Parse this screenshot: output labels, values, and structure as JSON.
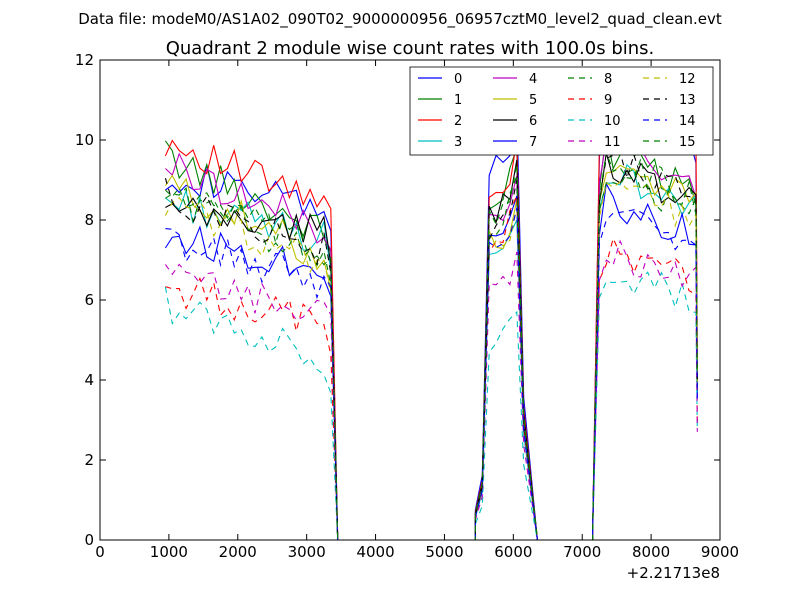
{
  "figure": {
    "suptitle": "Data file: modeM0/AS1A02_090T02_9000000956_06957cztM0_level2_quad_clean.evt"
  },
  "chart_data": {
    "type": "line",
    "title": "Quadrant 2 module wise count rates with 100.0s bins.",
    "xlabel": "",
    "ylabel": "",
    "xlim": [
      0,
      9000
    ],
    "ylim": [
      0,
      12
    ],
    "x_ticks": [
      0,
      1000,
      2000,
      3000,
      4000,
      5000,
      6000,
      7000,
      8000,
      9000
    ],
    "y_ticks": [
      0,
      2,
      4,
      6,
      8,
      10,
      12
    ],
    "x_tick_labels": [
      "0",
      "1000",
      "2000",
      "3000",
      "4000",
      "5000",
      "6000",
      "7000",
      "8000",
      "9000"
    ],
    "y_tick_labels": [
      "0",
      "2",
      "4",
      "6",
      "8",
      "10",
      "12"
    ],
    "x_offset_label": "+2.21713e8",
    "grid": false,
    "legend_position": "top-right",
    "legend_columns": 4,
    "segments": [
      {
        "start": 950,
        "end": 3350,
        "step": 100
      },
      {
        "start": 5550,
        "end": 6250,
        "step": 100
      },
      {
        "start": 7250,
        "end": 8650,
        "step": 100
      }
    ],
    "zero_ranges": [
      [
        3450,
        5450
      ],
      [
        6350,
        7150
      ]
    ],
    "series": [
      {
        "name": "0",
        "color": "#0000ff",
        "dash": "solid",
        "base": 9.2,
        "drift": -1.0,
        "post": [
          1.05,
          1.12
        ],
        "peak": 10.8
      },
      {
        "name": "1",
        "color": "#008000",
        "dash": "solid",
        "base": 9.6,
        "drift": -2.0,
        "post": [
          0.92,
          0.98
        ],
        "peak": 9.8
      },
      {
        "name": "2",
        "color": "#ff0000",
        "dash": "solid",
        "base": 10.0,
        "drift": -1.7,
        "post": [
          0.98,
          1.08
        ],
        "peak": 10.0
      },
      {
        "name": "3",
        "color": "#00bfbf",
        "dash": "solid",
        "base": 8.5,
        "drift": -1.0,
        "post": [
          1.0,
          1.03
        ],
        "peak": 8.0
      },
      {
        "name": "4",
        "color": "#bf00bf",
        "dash": "solid",
        "base": 9.4,
        "drift": -1.7,
        "post": [
          0.96,
          1.02
        ],
        "peak": 9.1
      },
      {
        "name": "5",
        "color": "#bfbf00",
        "dash": "solid",
        "base": 8.9,
        "drift": -1.9,
        "post": [
          0.97,
          1.01
        ],
        "peak": 8.5
      },
      {
        "name": "6",
        "color": "#000000",
        "dash": "solid",
        "base": 8.2,
        "drift": -0.5,
        "post": [
          1.06,
          1.08
        ],
        "peak": 9.5
      },
      {
        "name": "7",
        "color": "#0000ff",
        "dash": "solid",
        "base": 7.6,
        "drift": -0.8,
        "post": [
          1.02,
          1.07
        ],
        "peak": 8.6
      },
      {
        "name": "8",
        "color": "#008000",
        "dash": "dashed",
        "base": 8.7,
        "drift": -1.7,
        "post": [
          0.95,
          1.02
        ],
        "peak": 9.1
      },
      {
        "name": "9",
        "color": "#ff0000",
        "dash": "dashed",
        "base": 6.3,
        "drift": -0.9,
        "post": [
          1.05,
          1.1
        ],
        "peak": 8.6
      },
      {
        "name": "10",
        "color": "#00bfbf",
        "dash": "dashed",
        "base": 5.9,
        "drift": -1.4,
        "post": [
          1.04,
          1.1
        ],
        "peak": 5.7
      },
      {
        "name": "11",
        "color": "#bf00bf",
        "dash": "dashed",
        "base": 6.6,
        "drift": -1.0,
        "post": [
          1.0,
          1.05
        ],
        "peak": 7.2
      },
      {
        "name": "12",
        "color": "#bfbf00",
        "dash": "dashed",
        "base": 8.4,
        "drift": -1.5,
        "post": [
          0.98,
          1.02
        ],
        "peak": 8.3
      },
      {
        "name": "13",
        "color": "#000000",
        "dash": "dashed",
        "base": 8.6,
        "drift": -1.4,
        "post": [
          1.02,
          1.05
        ],
        "peak": 9.0
      },
      {
        "name": "14",
        "color": "#0000ff",
        "dash": "dashed",
        "base": 7.5,
        "drift": -1.1,
        "post": [
          1.0,
          1.06
        ],
        "peak": 8.3
      },
      {
        "name": "15",
        "color": "#008000",
        "dash": "dashed",
        "base": 8.8,
        "drift": -1.7,
        "post": [
          0.98,
          1.04
        ],
        "peak": 9.4
      }
    ]
  }
}
